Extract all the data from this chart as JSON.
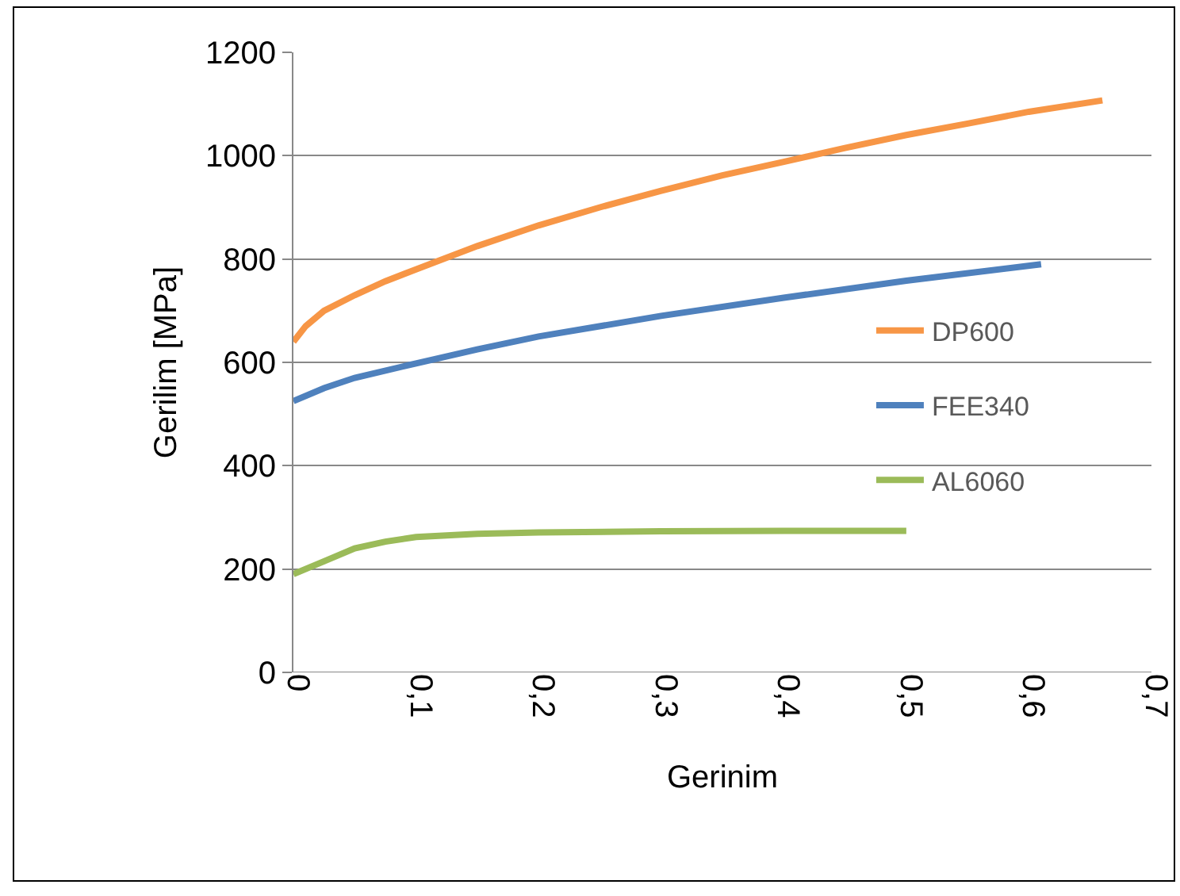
{
  "chart_data": {
    "type": "line",
    "xlabel": "Gerinim",
    "ylabel": "Gerilim [MPa]",
    "xlim": [
      0,
      0.7
    ],
    "ylim": [
      0,
      1200
    ],
    "xticks": [
      {
        "value": 0,
        "label": "0"
      },
      {
        "value": 0.1,
        "label": "0,1"
      },
      {
        "value": 0.2,
        "label": "0,2"
      },
      {
        "value": 0.3,
        "label": "0,3"
      },
      {
        "value": 0.4,
        "label": "0,4"
      },
      {
        "value": 0.5,
        "label": "0,5"
      },
      {
        "value": 0.6,
        "label": "0,6"
      },
      {
        "value": 0.7,
        "label": "0,7"
      }
    ],
    "yticks": [
      0,
      200,
      400,
      600,
      800,
      1000,
      1200
    ],
    "grid": "y",
    "legend": "right",
    "marker": "none",
    "line_style": "solid",
    "series": [
      {
        "name": "DP600",
        "color": "#f79646",
        "x": [
          0,
          0.01,
          0.025,
          0.05,
          0.075,
          0.1,
          0.15,
          0.2,
          0.25,
          0.3,
          0.35,
          0.4,
          0.45,
          0.5,
          0.55,
          0.6,
          0.66
        ],
        "values": [
          640,
          670,
          700,
          730,
          757,
          780,
          825,
          865,
          900,
          932,
          962,
          988,
          1015,
          1040,
          1062,
          1085,
          1107
        ]
      },
      {
        "name": "FEE340",
        "color": "#4f81bd",
        "x": [
          0,
          0.025,
          0.05,
          0.1,
          0.15,
          0.2,
          0.3,
          0.4,
          0.5,
          0.61
        ],
        "values": [
          525,
          550,
          570,
          598,
          625,
          650,
          690,
          725,
          758,
          790
        ]
      },
      {
        "name": "AL6060",
        "color": "#9bbb59",
        "x": [
          0,
          0.025,
          0.05,
          0.075,
          0.1,
          0.15,
          0.2,
          0.3,
          0.4,
          0.5
        ],
        "values": [
          190,
          215,
          240,
          253,
          262,
          268,
          271,
          273,
          274,
          274
        ]
      }
    ]
  }
}
